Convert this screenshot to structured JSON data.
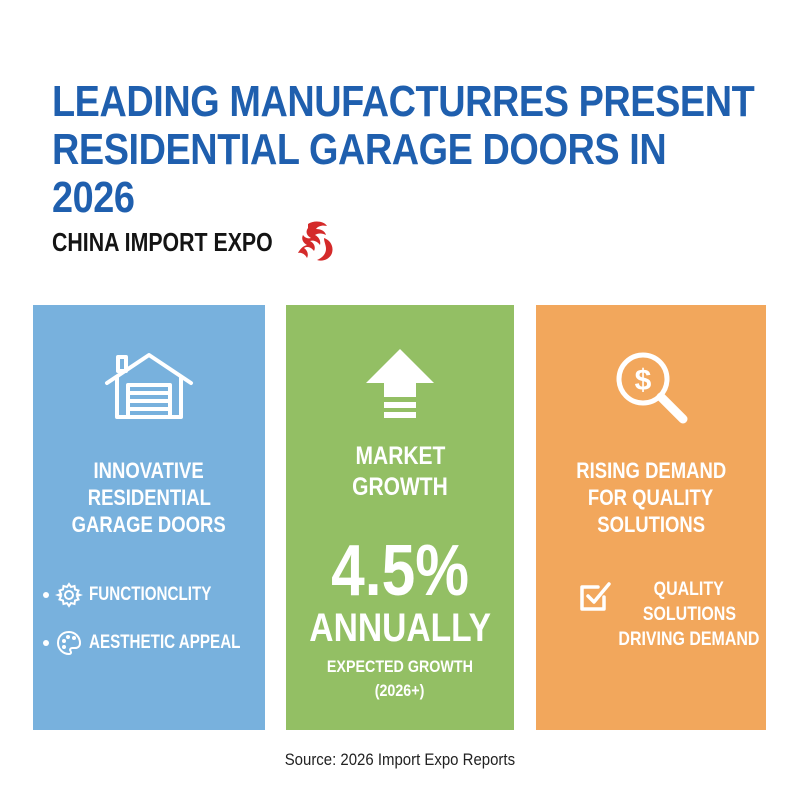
{
  "header": {
    "title_lines": [
      "LEADING MANUFACTURRES PRESENT",
      "RESIDENTIAL GARAGE DOORS IN",
      "2026"
    ],
    "subtitle": "CHINA IMPORT EXPO",
    "subtitle_icon": "dragon-icon"
  },
  "panels": {
    "innovative": {
      "color": "#78b1dd",
      "icon": "garage-icon",
      "heading_lines": [
        "INNOVATIVE",
        "RESIDENTIAL",
        "GARAGE DOORS"
      ],
      "items": [
        {
          "icon": "gear-icon",
          "label": "FUNCTIONCLITY"
        },
        {
          "icon": "palette-icon",
          "label": "AESTHETIC APPEAL"
        }
      ]
    },
    "growth": {
      "color": "#93bf64",
      "icon": "up-arrow-icon",
      "heading_lines": [
        "MARKET",
        "GROWTH"
      ],
      "value": "4.5%",
      "period": "ANNUALLY",
      "note_lines": [
        "EXPECTED GROWTH",
        "(2026+)"
      ]
    },
    "demand": {
      "color": "#f2a75c",
      "icon": "dollar-search-icon",
      "heading_lines": [
        "RISING DEMAND",
        "FOR QUALITY",
        "SOLUTIONS"
      ],
      "check_icon": "checkbox-icon",
      "text_lines": [
        "QUALITY",
        "SOLUTIONS",
        "DRIVING DEMAND"
      ]
    }
  },
  "footer": {
    "source": "Source: 2026 Import Expo Reports"
  }
}
